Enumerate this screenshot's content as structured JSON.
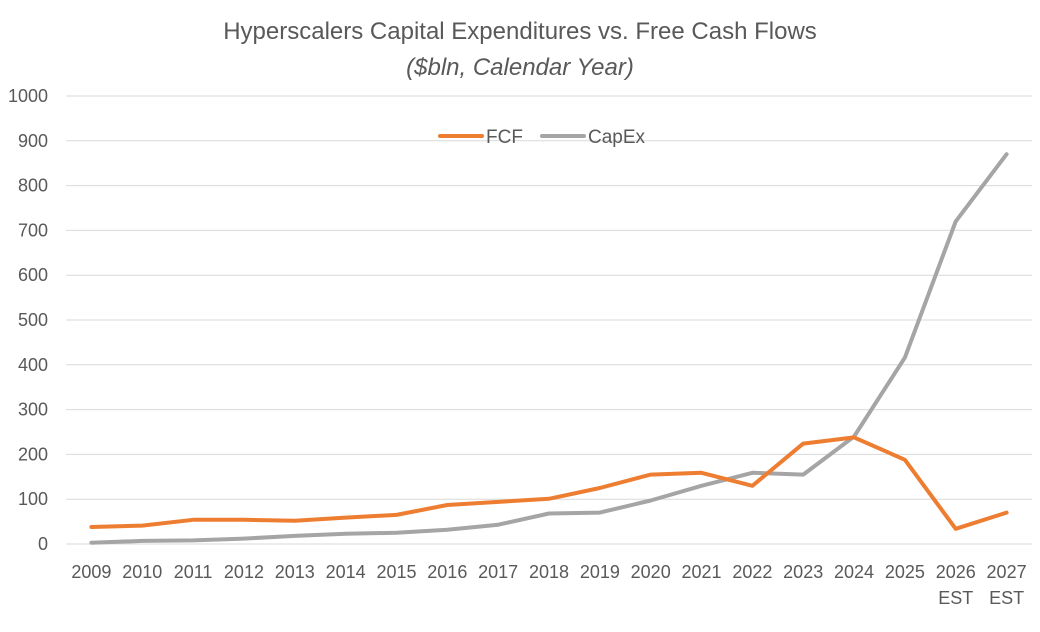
{
  "chart_data": {
    "type": "line",
    "title": "Hyperscalers Capital Expenditures vs. Free Cash Flows",
    "subtitle": "($bln, Calendar Year)",
    "categories": [
      "2009",
      "2010",
      "2011",
      "2012",
      "2013",
      "2014",
      "2015",
      "2016",
      "2017",
      "2018",
      "2019",
      "2020",
      "2021",
      "2022",
      "2023",
      "2024",
      "2025",
      "2026 EST",
      "2027 EST"
    ],
    "category_labels": [
      [
        "2009"
      ],
      [
        "2010"
      ],
      [
        "2011"
      ],
      [
        "2012"
      ],
      [
        "2013"
      ],
      [
        "2014"
      ],
      [
        "2015"
      ],
      [
        "2016"
      ],
      [
        "2017"
      ],
      [
        "2018"
      ],
      [
        "2019"
      ],
      [
        "2020"
      ],
      [
        "2021"
      ],
      [
        "2022"
      ],
      [
        "2023"
      ],
      [
        "2024"
      ],
      [
        "2025"
      ],
      [
        "2026",
        "EST"
      ],
      [
        "2027",
        "EST"
      ]
    ],
    "series": [
      {
        "name": "FCF",
        "color": "#ed7d31",
        "values": [
          38,
          41,
          54,
          54,
          52,
          59,
          65,
          87,
          94,
          101,
          125,
          155,
          159,
          130,
          224,
          238,
          188,
          34,
          70
        ]
      },
      {
        "name": "CapEx",
        "color": "#a5a5a5",
        "values": [
          3,
          7,
          8,
          12,
          18,
          23,
          25,
          32,
          43,
          68,
          70,
          97,
          130,
          159,
          155,
          240,
          416,
          720,
          870
        ]
      }
    ],
    "ylim": [
      0,
      1000
    ],
    "y_ticks": [
      0,
      100,
      200,
      300,
      400,
      500,
      600,
      700,
      800,
      900,
      1000
    ],
    "xlabel": "",
    "ylabel": "",
    "grid": true,
    "legend": "top-center"
  }
}
